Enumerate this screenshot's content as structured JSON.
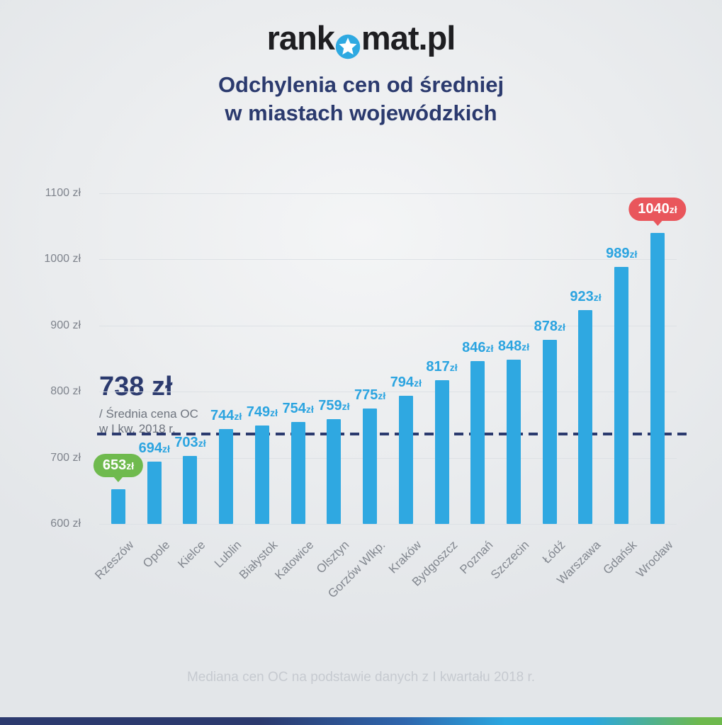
{
  "logo": {
    "prefix": "rank",
    "suffix": "mat.pl",
    "star_color": "#2ea9e1",
    "text_color": "#1e1e21"
  },
  "title": {
    "line1": "Odchylenia cen od średniej",
    "line2": "w miastach wojewódzkich",
    "color": "#2b3a6e"
  },
  "chart_data": {
    "type": "bar",
    "title": "Odchylenia cen od średniej w miastach wojewódzkich",
    "categories": [
      "Rzeszów",
      "Opole",
      "Kielce",
      "Lublin",
      "Białystok",
      "Katowice",
      "Olsztyn",
      "Gorzów Wlkp.",
      "Kraków",
      "Bydgoszcz",
      "Poznań",
      "Szczecin",
      "Łódź",
      "Warszawa",
      "Gdańsk",
      "Wrocław"
    ],
    "values": [
      653,
      694,
      703,
      744,
      749,
      754,
      759,
      775,
      794,
      817,
      846,
      848,
      878,
      923,
      989,
      1040
    ],
    "unit": "zł",
    "ylim": [
      600,
      1100
    ],
    "y_ticks": [
      1100,
      1000,
      900,
      800,
      700,
      600
    ],
    "y_tick_suffix": " zł",
    "grid": true,
    "bar_color": "#2fa8e1",
    "value_label_color": "#2ba4e0",
    "min_highlight": {
      "index": 0,
      "value": 653,
      "badge_color": "#6fba4e"
    },
    "max_highlight": {
      "index": 15,
      "value": 1040,
      "badge_color": "#e9565c"
    },
    "average_line": {
      "value": 738,
      "label": "738 zł",
      "caption": [
        "/  Średnia cena OC",
        "w I kw. 2018 r."
      ],
      "color": "#2b3a6e",
      "style": "dashed"
    }
  },
  "footer": {
    "note": "Mediana cen OC na podstawie danych z I kwartału 2018 r."
  },
  "stripe": {
    "colors": [
      "#2c3a6e",
      "#2f66ad",
      "#2ba7e0",
      "#6eb94d"
    ]
  }
}
